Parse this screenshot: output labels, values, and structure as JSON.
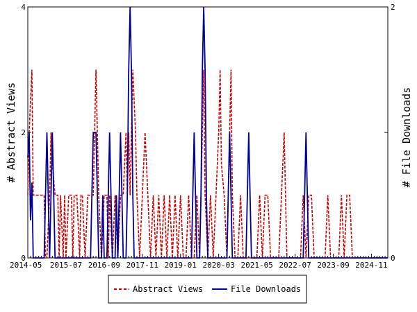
{
  "chart_data": {
    "type": "line",
    "title": "",
    "ylabel_left": "# Abstract Views",
    "ylabel_right": "# File Downloads",
    "xlabel": "",
    "x_tick_labels": [
      "2014-05",
      "2015-07",
      "2016-09",
      "2017-11",
      "2019-01",
      "2020-03",
      "2021-05",
      "2022-07",
      "2023-09",
      "2024-11"
    ],
    "ylim_left": [
      0,
      4
    ],
    "ylim_right": [
      0,
      2
    ],
    "y_ticks_left": [
      "0",
      "2",
      "4"
    ],
    "y_ticks_right": [
      "0",
      "1",
      "2"
    ],
    "x_range_months": [
      0,
      132
    ],
    "legend_position": "bottom",
    "grid": false,
    "series": [
      {
        "name": "Abstract Views",
        "axis": "left",
        "color": "#cc0000",
        "style": "dashed",
        "points": [
          [
            0,
            1
          ],
          [
            0.5,
            2
          ],
          [
            1,
            2.5
          ],
          [
            1.5,
            3
          ],
          [
            2,
            1
          ],
          [
            3,
            1
          ],
          [
            4,
            1
          ],
          [
            5,
            1
          ],
          [
            6,
            1
          ],
          [
            6.5,
            0
          ],
          [
            7,
            0
          ],
          [
            8,
            1
          ],
          [
            8.5,
            2
          ],
          [
            9,
            1.5
          ],
          [
            10,
            1
          ],
          [
            11,
            1
          ],
          [
            11.5,
            0
          ],
          [
            12,
            1
          ],
          [
            13,
            0
          ],
          [
            13.5,
            1
          ],
          [
            14,
            0
          ],
          [
            15,
            1
          ],
          [
            16,
            1
          ],
          [
            16.5,
            0
          ],
          [
            17,
            1
          ],
          [
            18,
            1
          ],
          [
            19,
            0
          ],
          [
            19.5,
            1
          ],
          [
            20,
            1
          ],
          [
            21,
            0
          ],
          [
            22,
            1
          ],
          [
            23,
            1
          ],
          [
            24,
            1
          ],
          [
            24.5,
            2
          ],
          [
            25,
            3
          ],
          [
            25.5,
            2
          ],
          [
            26,
            1
          ],
          [
            27,
            0
          ],
          [
            28,
            1
          ],
          [
            29,
            1
          ],
          [
            29.5,
            0
          ],
          [
            30,
            1
          ],
          [
            31,
            0
          ],
          [
            32,
            1
          ],
          [
            33,
            0
          ],
          [
            34,
            1
          ],
          [
            35,
            1
          ],
          [
            36,
            2
          ],
          [
            36.5,
            1
          ],
          [
            37,
            2
          ],
          [
            37.5,
            1
          ],
          [
            38,
            2
          ],
          [
            38.5,
            3
          ],
          [
            39,
            2.5
          ],
          [
            39.5,
            2
          ],
          [
            40,
            1
          ],
          [
            41,
            0
          ],
          [
            42,
            1
          ],
          [
            43,
            2
          ],
          [
            43.5,
            1.5
          ],
          [
            44,
            1
          ],
          [
            45,
            0
          ],
          [
            46,
            1
          ],
          [
            47,
            0
          ],
          [
            48,
            1
          ],
          [
            49,
            0
          ],
          [
            50,
            1
          ],
          [
            51,
            0
          ],
          [
            52,
            1
          ],
          [
            53,
            0
          ],
          [
            54,
            1
          ],
          [
            55,
            0
          ],
          [
            56,
            1
          ],
          [
            57,
            0
          ],
          [
            58,
            0
          ],
          [
            59,
            1
          ],
          [
            60,
            0
          ],
          [
            61,
            0
          ],
          [
            62,
            1
          ],
          [
            63,
            0
          ],
          [
            63.5,
            1
          ],
          [
            64,
            2
          ],
          [
            64.5,
            3
          ],
          [
            65,
            1
          ],
          [
            66,
            0
          ],
          [
            67,
            1
          ],
          [
            68,
            0
          ],
          [
            69,
            1
          ],
          [
            70,
            2
          ],
          [
            70.5,
            3
          ],
          [
            71,
            1.5
          ],
          [
            72,
            1
          ],
          [
            73,
            0
          ],
          [
            74,
            2
          ],
          [
            74.5,
            3
          ],
          [
            75,
            1
          ],
          [
            76,
            0
          ],
          [
            77,
            0
          ],
          [
            78,
            1
          ],
          [
            79,
            0
          ],
          [
            80,
            0
          ],
          [
            81,
            0
          ],
          [
            82,
            0
          ],
          [
            83,
            0
          ],
          [
            84,
            0
          ],
          [
            85,
            1
          ],
          [
            86,
            0
          ],
          [
            87,
            1
          ],
          [
            88,
            1
          ],
          [
            89,
            0
          ],
          [
            90,
            0
          ],
          [
            91,
            0
          ],
          [
            92,
            0
          ],
          [
            93,
            1
          ],
          [
            94,
            2
          ],
          [
            94.5,
            1
          ],
          [
            95,
            0
          ],
          [
            96,
            0
          ],
          [
            97,
            0
          ],
          [
            98,
            0
          ],
          [
            99,
            0
          ],
          [
            100,
            0
          ],
          [
            101,
            1
          ],
          [
            102,
            0
          ],
          [
            103,
            1
          ],
          [
            104,
            1
          ],
          [
            105,
            0
          ],
          [
            106,
            0
          ],
          [
            107,
            0
          ],
          [
            108,
            0
          ],
          [
            109,
            0
          ],
          [
            110,
            1
          ],
          [
            111,
            0
          ],
          [
            112,
            0
          ],
          [
            113,
            0
          ],
          [
            114,
            0
          ],
          [
            115,
            1
          ],
          [
            116,
            0
          ],
          [
            117,
            1
          ],
          [
            118,
            1
          ],
          [
            119,
            0
          ],
          [
            120,
            0
          ],
          [
            121,
            0
          ],
          [
            122,
            0
          ],
          [
            123,
            0
          ],
          [
            124,
            0
          ],
          [
            125,
            0
          ],
          [
            126,
            0
          ],
          [
            127,
            0
          ],
          [
            128,
            0
          ],
          [
            129,
            0
          ],
          [
            130,
            0
          ],
          [
            131,
            0
          ],
          [
            132,
            0
          ]
        ]
      },
      {
        "name": "File Downloads",
        "axis": "right",
        "color": "#000099",
        "style": "solid",
        "points": [
          [
            0,
            0.8
          ],
          [
            0.5,
            1
          ],
          [
            1,
            0.3
          ],
          [
            1.5,
            0.6
          ],
          [
            2,
            0
          ],
          [
            2.5,
            0
          ],
          [
            3,
            0
          ],
          [
            4,
            0
          ],
          [
            5,
            0
          ],
          [
            6,
            0
          ],
          [
            6.5,
            0.5
          ],
          [
            7,
            1
          ],
          [
            7.5,
            0.5
          ],
          [
            8,
            0
          ],
          [
            8.5,
            0.5
          ],
          [
            9,
            1
          ],
          [
            9.5,
            0.5
          ],
          [
            10,
            0
          ],
          [
            11,
            0
          ],
          [
            12,
            0
          ],
          [
            13,
            0
          ],
          [
            14,
            0
          ],
          [
            15,
            0
          ],
          [
            16,
            0
          ],
          [
            17,
            0
          ],
          [
            18,
            0
          ],
          [
            19,
            0
          ],
          [
            20,
            0
          ],
          [
            21,
            0
          ],
          [
            22,
            0
          ],
          [
            23,
            0
          ],
          [
            23.5,
            0.5
          ],
          [
            24,
            1
          ],
          [
            25,
            1
          ],
          [
            25.5,
            0.5
          ],
          [
            26,
            0
          ],
          [
            27,
            0
          ],
          [
            27.5,
            0.5
          ],
          [
            28,
            0
          ],
          [
            29,
            0
          ],
          [
            29.5,
            0.5
          ],
          [
            30,
            1
          ],
          [
            30.5,
            0.5
          ],
          [
            31,
            0
          ],
          [
            32,
            0
          ],
          [
            32.5,
            0.5
          ],
          [
            33,
            0
          ],
          [
            33.5,
            0.5
          ],
          [
            34,
            1
          ],
          [
            34.5,
            0.5
          ],
          [
            35,
            0
          ],
          [
            36,
            0
          ],
          [
            36.5,
            0.5
          ],
          [
            37,
            1.5
          ],
          [
            37.5,
            2
          ],
          [
            38,
            1.5
          ],
          [
            38.5,
            0.5
          ],
          [
            39,
            0
          ],
          [
            40,
            0
          ],
          [
            41,
            0
          ],
          [
            42,
            0
          ],
          [
            43,
            0
          ],
          [
            44,
            0
          ],
          [
            45,
            0
          ],
          [
            46,
            0
          ],
          [
            47,
            0
          ],
          [
            48,
            0
          ],
          [
            49,
            0
          ],
          [
            50,
            0
          ],
          [
            51,
            0
          ],
          [
            52,
            0
          ],
          [
            53,
            0
          ],
          [
            54,
            0
          ],
          [
            55,
            0
          ],
          [
            56,
            0
          ],
          [
            57,
            0
          ],
          [
            58,
            0
          ],
          [
            59,
            0
          ],
          [
            60,
            0
          ],
          [
            60.5,
            0.5
          ],
          [
            61,
            1
          ],
          [
            61.5,
            0.5
          ],
          [
            62,
            0
          ],
          [
            63,
            0
          ],
          [
            63.5,
            0.5
          ],
          [
            64,
            1.5
          ],
          [
            64.5,
            2
          ],
          [
            65,
            1.5
          ],
          [
            65.5,
            0.5
          ],
          [
            66,
            0
          ],
          [
            67,
            0
          ],
          [
            68,
            0
          ],
          [
            69,
            0
          ],
          [
            70,
            0
          ],
          [
            71,
            0
          ],
          [
            72,
            0
          ],
          [
            73,
            0
          ],
          [
            73.5,
            0.5
          ],
          [
            74,
            1
          ],
          [
            74.5,
            0.5
          ],
          [
            75,
            0
          ],
          [
            76,
            0
          ],
          [
            77,
            0
          ],
          [
            78,
            0
          ],
          [
            79,
            0
          ],
          [
            80,
            0
          ],
          [
            80.5,
            0.5
          ],
          [
            81,
            1
          ],
          [
            81.5,
            0.5
          ],
          [
            82,
            0
          ],
          [
            83,
            0
          ],
          [
            84,
            0
          ],
          [
            85,
            0
          ],
          [
            86,
            0
          ],
          [
            87,
            0
          ],
          [
            88,
            0
          ],
          [
            89,
            0
          ],
          [
            90,
            0
          ],
          [
            91,
            0
          ],
          [
            92,
            0
          ],
          [
            93,
            0
          ],
          [
            94,
            0
          ],
          [
            95,
            0
          ],
          [
            96,
            0
          ],
          [
            97,
            0
          ],
          [
            98,
            0
          ],
          [
            99,
            0
          ],
          [
            100,
            0
          ],
          [
            101,
            0
          ],
          [
            101.5,
            0.5
          ],
          [
            102,
            1
          ],
          [
            102.5,
            0.5
          ],
          [
            103,
            0
          ],
          [
            104,
            0
          ],
          [
            105,
            0
          ],
          [
            106,
            0
          ],
          [
            107,
            0
          ],
          [
            108,
            0
          ],
          [
            109,
            0
          ],
          [
            110,
            0
          ],
          [
            111,
            0
          ],
          [
            112,
            0
          ],
          [
            113,
            0
          ],
          [
            114,
            0
          ],
          [
            115,
            0
          ],
          [
            116,
            0
          ],
          [
            117,
            0
          ],
          [
            118,
            0
          ],
          [
            119,
            0
          ],
          [
            120,
            0
          ],
          [
            121,
            0
          ],
          [
            122,
            0
          ],
          [
            123,
            0
          ],
          [
            124,
            0
          ],
          [
            125,
            0
          ],
          [
            126,
            0
          ],
          [
            127,
            0
          ],
          [
            128,
            0
          ],
          [
            129,
            0
          ],
          [
            130,
            0
          ],
          [
            131,
            0
          ],
          [
            132,
            0
          ]
        ]
      }
    ]
  }
}
